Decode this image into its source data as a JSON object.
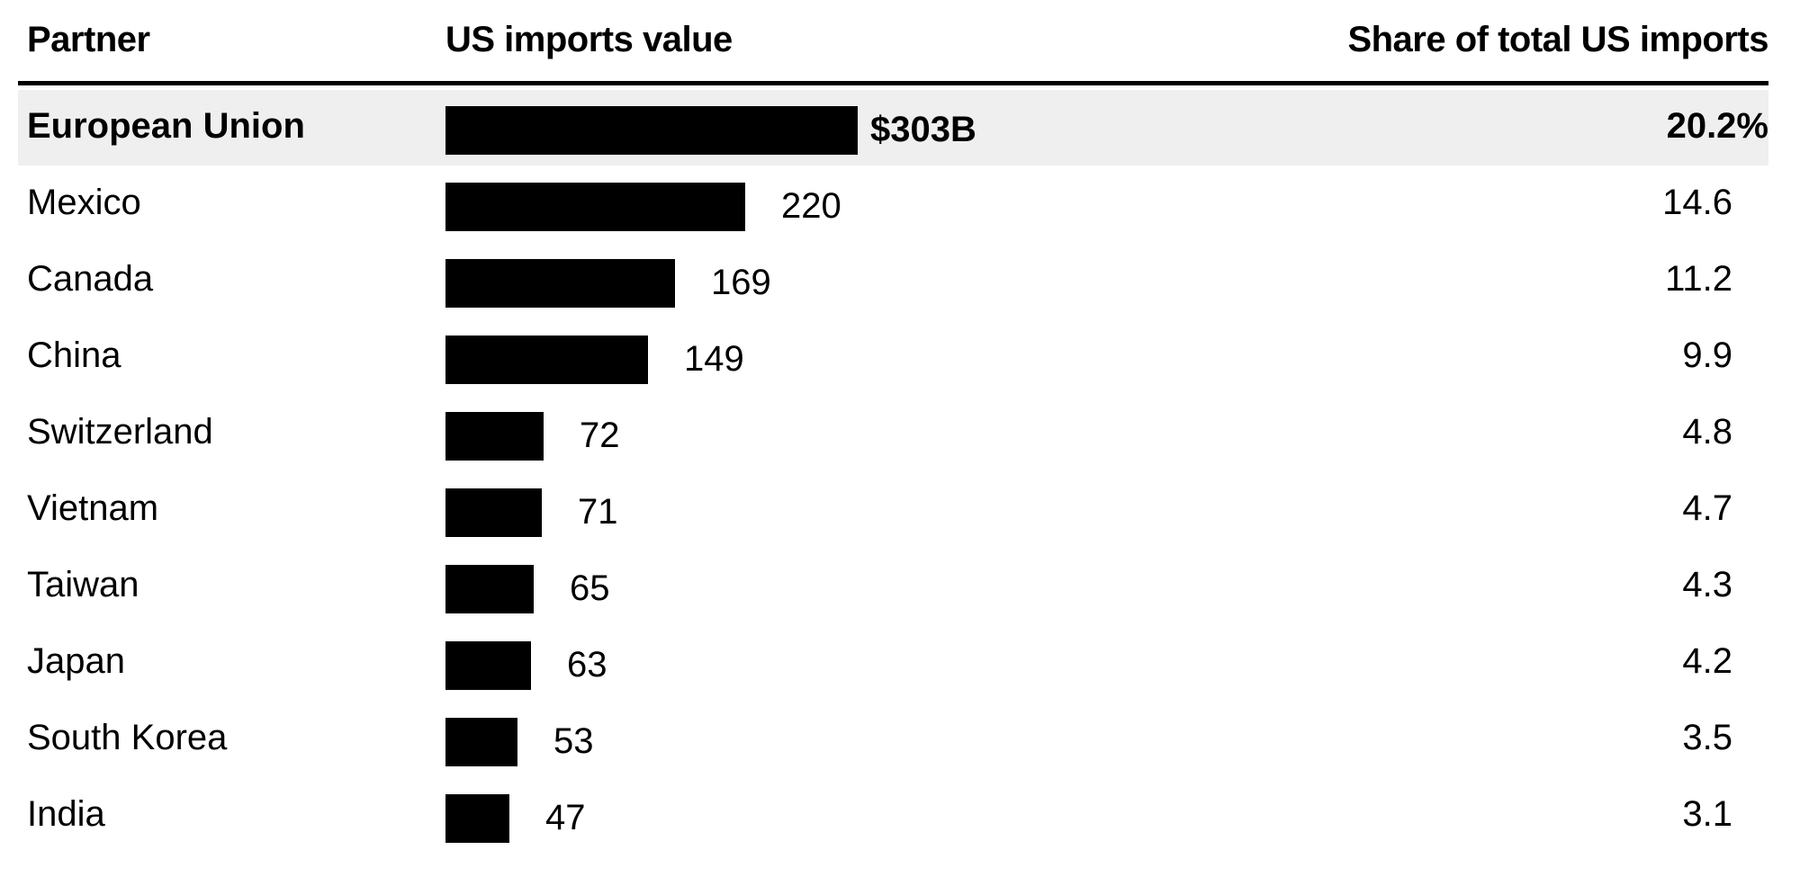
{
  "headers": {
    "partner": "Partner",
    "value": "US imports value",
    "share": "Share of total US imports"
  },
  "chart_data": {
    "type": "bar",
    "orientation": "horizontal",
    "categories": [
      "European Union",
      "Mexico",
      "Canada",
      "China",
      "Switzerland",
      "Vietnam",
      "Taiwan",
      "Japan",
      "South Korea",
      "India"
    ],
    "values": [
      303,
      220,
      169,
      149,
      72,
      71,
      65,
      63,
      53,
      47
    ],
    "value_labels": [
      "$303B",
      "220",
      "169",
      "149",
      "72",
      "71",
      "65",
      "63",
      "53",
      "47"
    ],
    "shares": [
      "20.2%",
      "14.6",
      "11.2",
      "9.9",
      "4.8",
      "4.7",
      "4.3",
      "4.2",
      "3.5",
      "3.1"
    ],
    "highlighted": "European Union",
    "bar_color": "#000000",
    "highlight_bg": "#efefef"
  }
}
